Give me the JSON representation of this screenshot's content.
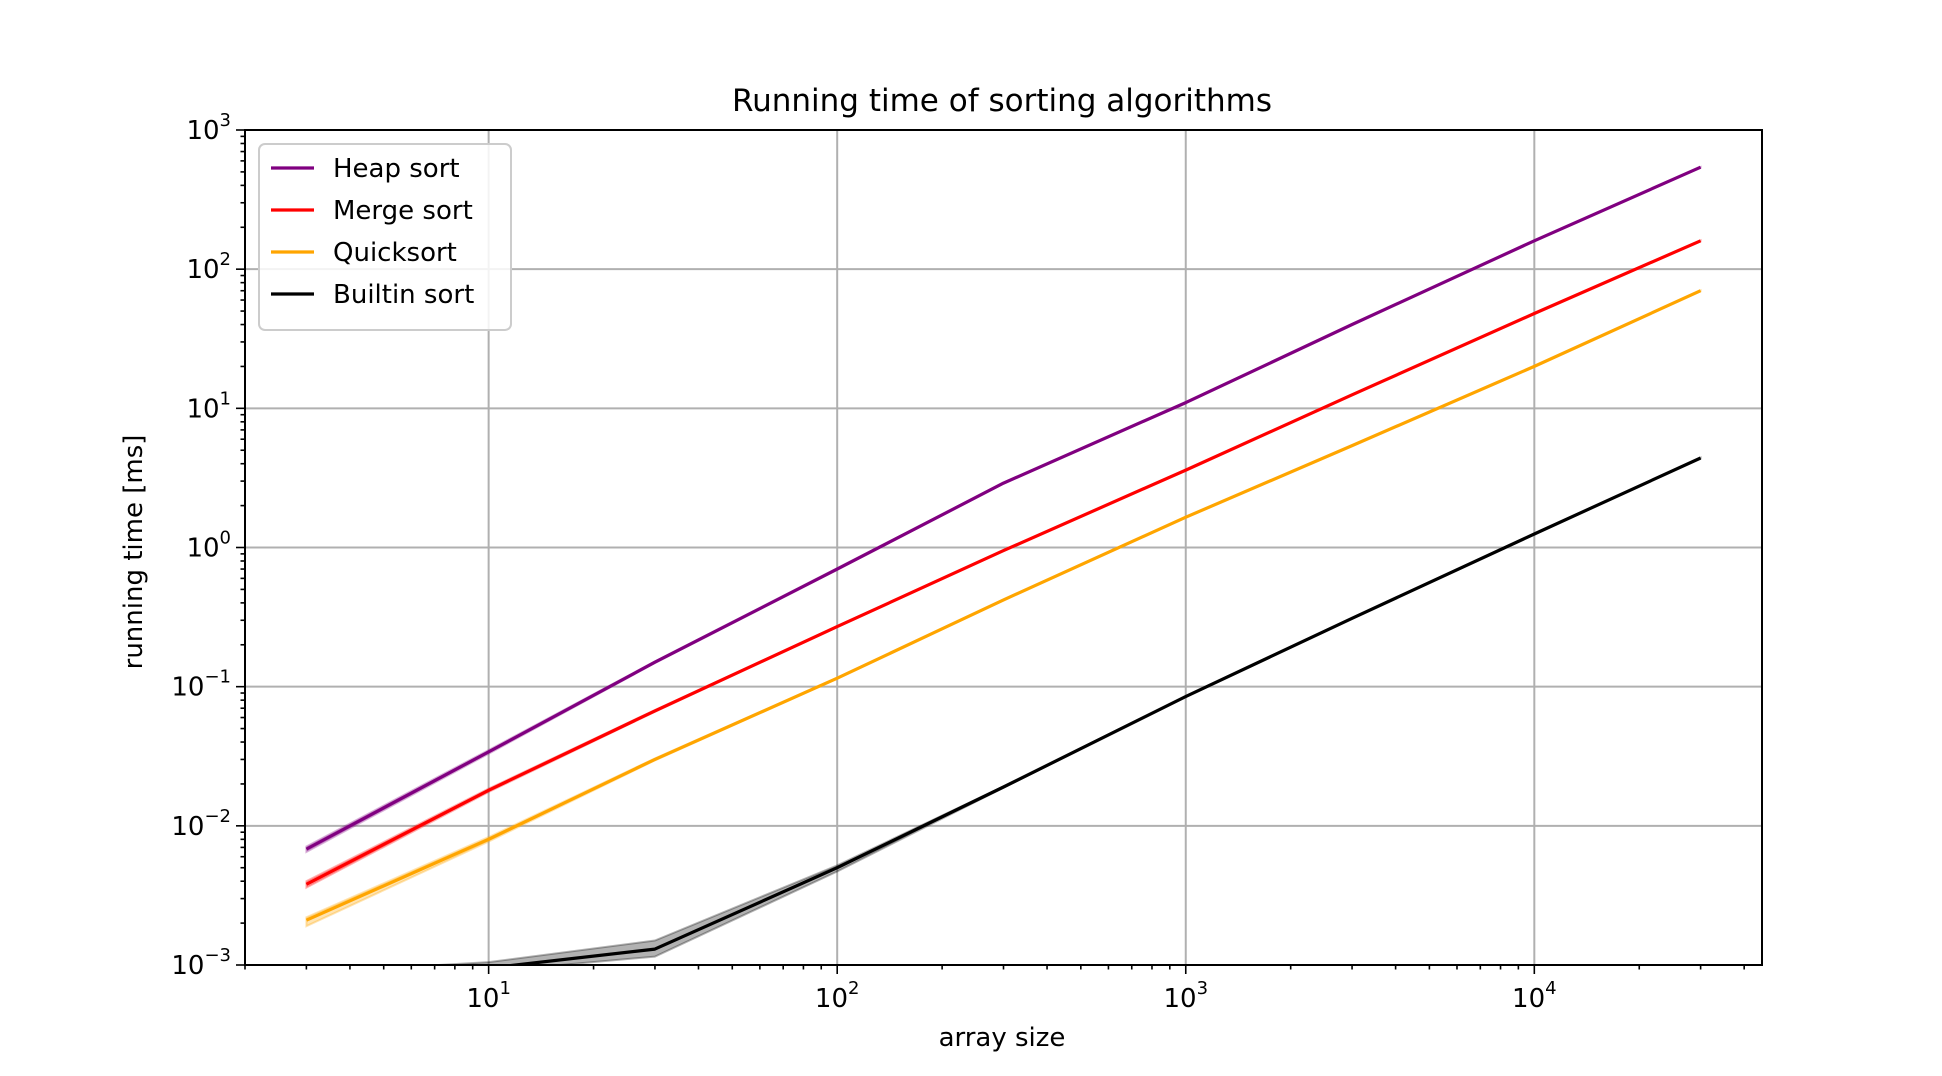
{
  "chart_data": {
    "type": "line",
    "title": "Running time of sorting algorithms",
    "xlabel": "array size",
    "ylabel": "running time [ms]",
    "xscale": "log",
    "yscale": "log",
    "xlim": [
      2,
      45000
    ],
    "ylim": [
      0.001,
      1000
    ],
    "grid": true,
    "legend_position": "top-left",
    "x": [
      3,
      10,
      30,
      100,
      300,
      1000,
      3000,
      10000,
      30000
    ],
    "xtick_labels": [
      {
        "value": 10,
        "base": "10",
        "exp": "1"
      },
      {
        "value": 100,
        "base": "10",
        "exp": "2"
      },
      {
        "value": 1000,
        "base": "10",
        "exp": "3"
      },
      {
        "value": 10000,
        "base": "10",
        "exp": "4"
      }
    ],
    "ytick_labels": [
      {
        "value": 0.001,
        "base": "10",
        "exp": "−3"
      },
      {
        "value": 0.01,
        "base": "10",
        "exp": "−2"
      },
      {
        "value": 0.1,
        "base": "10",
        "exp": "−1"
      },
      {
        "value": 1,
        "base": "10",
        "exp": "0"
      },
      {
        "value": 10,
        "base": "10",
        "exp": "1"
      },
      {
        "value": 100,
        "base": "10",
        "exp": "2"
      },
      {
        "value": 1000,
        "base": "10",
        "exp": "3"
      }
    ],
    "series": [
      {
        "name": "Heap sort",
        "color": "#800080",
        "values": [
          0.0068,
          0.034,
          0.15,
          0.7,
          2.9,
          11,
          40,
          160,
          540
        ],
        "band": [
          [
            0.0065,
            0.0071
          ],
          [
            0.033,
            0.035
          ],
          [
            0.148,
            0.152
          ],
          [
            0.69,
            0.71
          ],
          [
            2.88,
            2.92
          ],
          [
            10.9,
            11.1
          ],
          [
            39.8,
            40.2
          ],
          [
            159,
            161
          ],
          [
            538,
            542
          ]
        ]
      },
      {
        "name": "Merge sort",
        "color": "#ff0000",
        "values": [
          0.0038,
          0.018,
          0.067,
          0.27,
          0.95,
          3.6,
          12.5,
          48,
          160
        ],
        "band": [
          [
            0.0036,
            0.004
          ],
          [
            0.0175,
            0.0185
          ],
          [
            0.066,
            0.068
          ],
          [
            0.268,
            0.272
          ],
          [
            0.945,
            0.955
          ],
          [
            3.58,
            3.62
          ],
          [
            12.45,
            12.55
          ],
          [
            47.8,
            48.2
          ],
          [
            159,
            161
          ]
        ]
      },
      {
        "name": "Quicksort",
        "color": "#ffa500",
        "values": [
          0.0021,
          0.008,
          0.03,
          0.115,
          0.42,
          1.65,
          5.4,
          20,
          70
        ],
        "band": [
          [
            0.0019,
            0.0022
          ],
          [
            0.0077,
            0.0083
          ],
          [
            0.0295,
            0.0305
          ],
          [
            0.114,
            0.116
          ],
          [
            0.418,
            0.422
          ],
          [
            1.64,
            1.66
          ],
          [
            5.38,
            5.42
          ],
          [
            19.9,
            20.1
          ],
          [
            69.6,
            70.4
          ]
        ]
      },
      {
        "name": "Builtin sort",
        "color": "#000000",
        "values": [
          0.00085,
          0.00095,
          0.0013,
          0.005,
          0.019,
          0.085,
          0.31,
          1.25,
          4.4
        ],
        "band": [
          [
            0.00082,
            0.00088
          ],
          [
            0.0009,
            0.00105
          ],
          [
            0.00115,
            0.0015
          ],
          [
            0.0047,
            0.0052
          ],
          [
            0.0188,
            0.0192
          ],
          [
            0.084,
            0.086
          ],
          [
            0.308,
            0.312
          ],
          [
            1.24,
            1.26
          ],
          [
            4.38,
            4.42
          ]
        ]
      }
    ]
  }
}
